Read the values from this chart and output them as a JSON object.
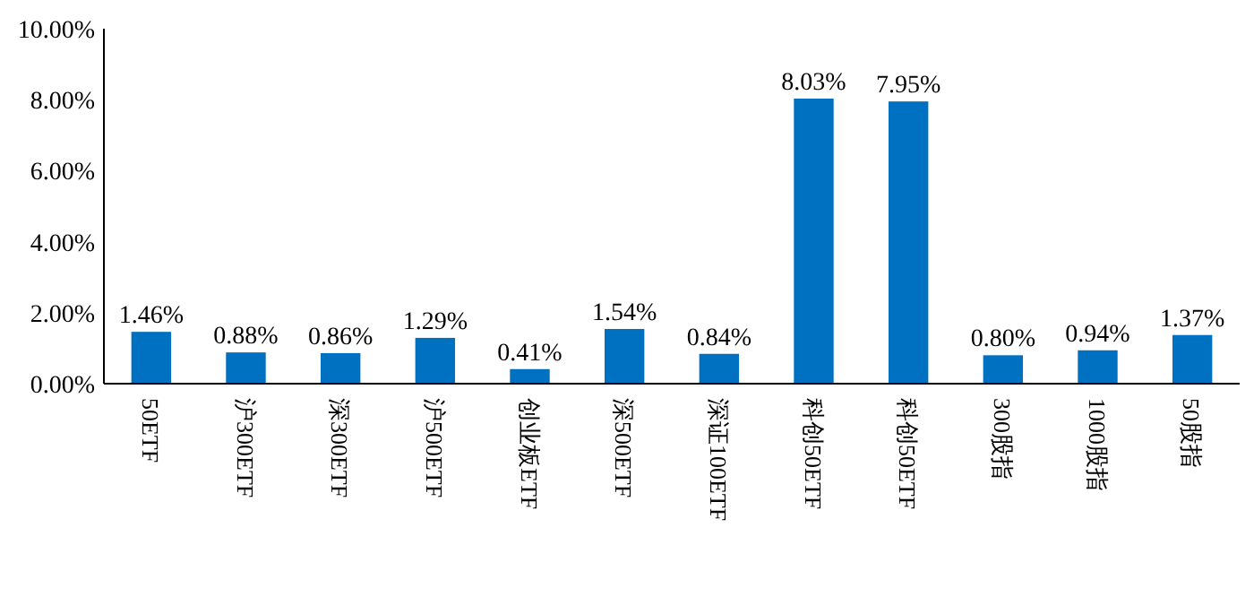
{
  "chart_data": {
    "type": "bar",
    "categories": [
      "50ETF",
      "沪300ETF",
      "深300ETF",
      "沪500ETF",
      "创业板ETF",
      "深500ETF",
      "深证100ETF",
      "科创50ETF",
      "科创50ETF",
      "300股指",
      "1000股指",
      "50股指"
    ],
    "values": [
      1.46,
      0.88,
      0.86,
      1.29,
      0.41,
      1.54,
      0.84,
      8.03,
      7.95,
      0.8,
      0.94,
      1.37
    ],
    "value_labels": [
      "1.46%",
      "0.88%",
      "0.86%",
      "1.29%",
      "0.41%",
      "1.54%",
      "0.84%",
      "8.03%",
      "7.95%",
      "0.80%",
      "0.94%",
      "1.37%"
    ],
    "color": "#0070c0",
    "ylim": [
      0,
      10
    ],
    "yticks": [
      {
        "value": 0,
        "label": "0.00%"
      },
      {
        "value": 2,
        "label": "2.00%"
      },
      {
        "value": 4,
        "label": "4.00%"
      },
      {
        "value": 6,
        "label": "6.00%"
      },
      {
        "value": 8,
        "label": "8.00%"
      },
      {
        "value": 10,
        "label": "10.00%"
      }
    ],
    "grid": false
  }
}
